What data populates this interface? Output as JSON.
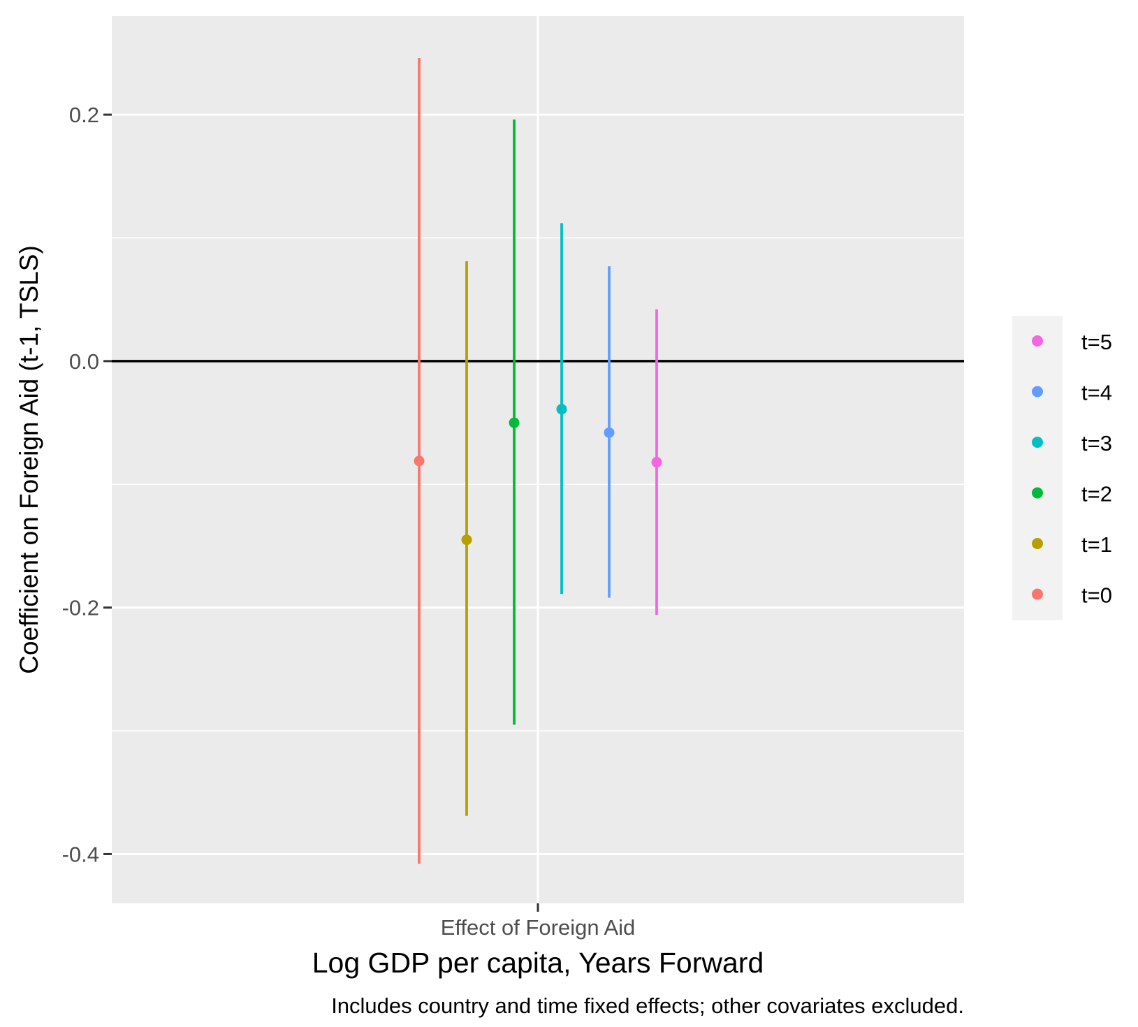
{
  "chart_data": {
    "type": "pointrange",
    "category": "Effect of Foreign Aid",
    "xlabel": "Log GDP per capita, Years Forward",
    "ylabel": "Coefficient on Foreign Aid (t-1, TSLS)",
    "caption": "Includes country and time fixed effects; other covariates excluded.",
    "ylim": [
      -0.44,
      0.28
    ],
    "yticks": [
      -0.4,
      -0.2,
      0.0,
      0.2
    ],
    "ytick_labels": [
      "-0.4",
      "-0.2",
      "0.0",
      "0.2"
    ],
    "reference_line_y": 0.0,
    "grid": true,
    "legend_position": "right",
    "series": [
      {
        "name": "t=0",
        "estimate": -0.081,
        "lower": -0.408,
        "upper": 0.246,
        "color": "#F8766D"
      },
      {
        "name": "t=1",
        "estimate": -0.145,
        "lower": -0.369,
        "upper": 0.081,
        "color": "#B79F00"
      },
      {
        "name": "t=2",
        "estimate": -0.05,
        "lower": -0.295,
        "upper": 0.196,
        "color": "#00BA38"
      },
      {
        "name": "t=3",
        "estimate": -0.039,
        "lower": -0.189,
        "upper": 0.112,
        "color": "#00BFC4"
      },
      {
        "name": "t=4",
        "estimate": -0.058,
        "lower": -0.192,
        "upper": 0.077,
        "color": "#619CFF"
      },
      {
        "name": "t=5",
        "estimate": -0.082,
        "lower": -0.206,
        "upper": 0.042,
        "color": "#F564E3"
      }
    ],
    "legend_order": [
      "t=5",
      "t=4",
      "t=3",
      "t=2",
      "t=1",
      "t=0"
    ]
  }
}
